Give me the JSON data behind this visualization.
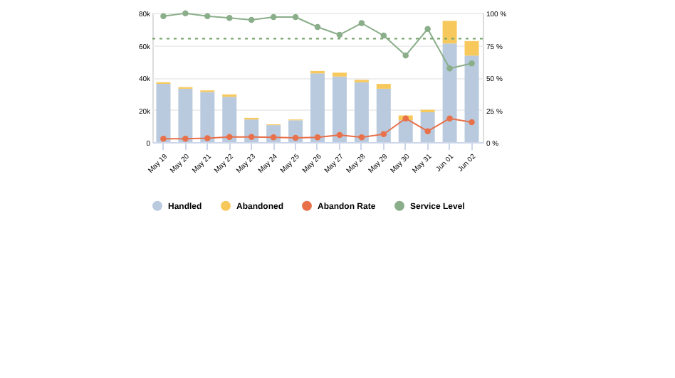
{
  "chart_data": {
    "type": "bar",
    "stacked": true,
    "categories": [
      "May 19",
      "May 20",
      "May 21",
      "May 22",
      "May 23",
      "May 24",
      "May 25",
      "May 26",
      "May 27",
      "May 28",
      "May 29",
      "May 30",
      "May 31",
      "Jun 01",
      "Jun 02"
    ],
    "series": [
      {
        "name": "Handled",
        "color": "#b9cade",
        "values": [
          36000,
          33000,
          31000,
          28000,
          14000,
          10500,
          13500,
          42500,
          40500,
          37000,
          33000,
          13500,
          18500,
          61000,
          53500
        ]
      },
      {
        "name": "Abandoned",
        "color": "#f7c95c",
        "values": [
          1000,
          1000,
          1000,
          1500,
          1000,
          500,
          500,
          1500,
          2500,
          1500,
          3000,
          3000,
          1500,
          14000,
          9000
        ]
      },
      {
        "name": "Abandon Rate",
        "type": "line",
        "axis": "y2",
        "color": "#e8704a",
        "values": [
          2.6,
          2.6,
          3,
          4,
          4,
          3.7,
          3.3,
          3.7,
          5.5,
          3.7,
          6.2,
          18.3,
          8.4,
          18.3,
          15.4
        ]
      },
      {
        "name": "Service Level",
        "type": "line",
        "axis": "y2",
        "color": "#8aae8a",
        "values": [
          97.4,
          99.6,
          97.4,
          96,
          94.5,
          96.7,
          96.7,
          89,
          83,
          92,
          82.4,
          67,
          87.5,
          57,
          60.8
        ]
      }
    ],
    "ylim": [
      0,
      80000
    ],
    "yticks": [
      {
        "value": 0,
        "label": "0"
      },
      {
        "value": 20000,
        "label": "20k"
      },
      {
        "value": 40000,
        "label": "40k"
      },
      {
        "value": 60000,
        "label": "60k"
      },
      {
        "value": 80000,
        "label": "80k"
      }
    ],
    "y2lim": [
      0,
      100
    ],
    "y2ticks": [
      {
        "value": 0,
        "label": "0 %"
      },
      {
        "value": 25,
        "label": "25 %"
      },
      {
        "value": 50,
        "label": "50 %"
      },
      {
        "value": 75,
        "label": "75 %"
      },
      {
        "value": 100,
        "label": "100 %"
      }
    ],
    "ref_lines": [
      {
        "axis": "y2",
        "value": 80,
        "color": "#7aa56e",
        "line_style": "dotted"
      }
    ],
    "grid": "y",
    "legend": "bottom",
    "marker": "circle",
    "line_style": "solid"
  }
}
